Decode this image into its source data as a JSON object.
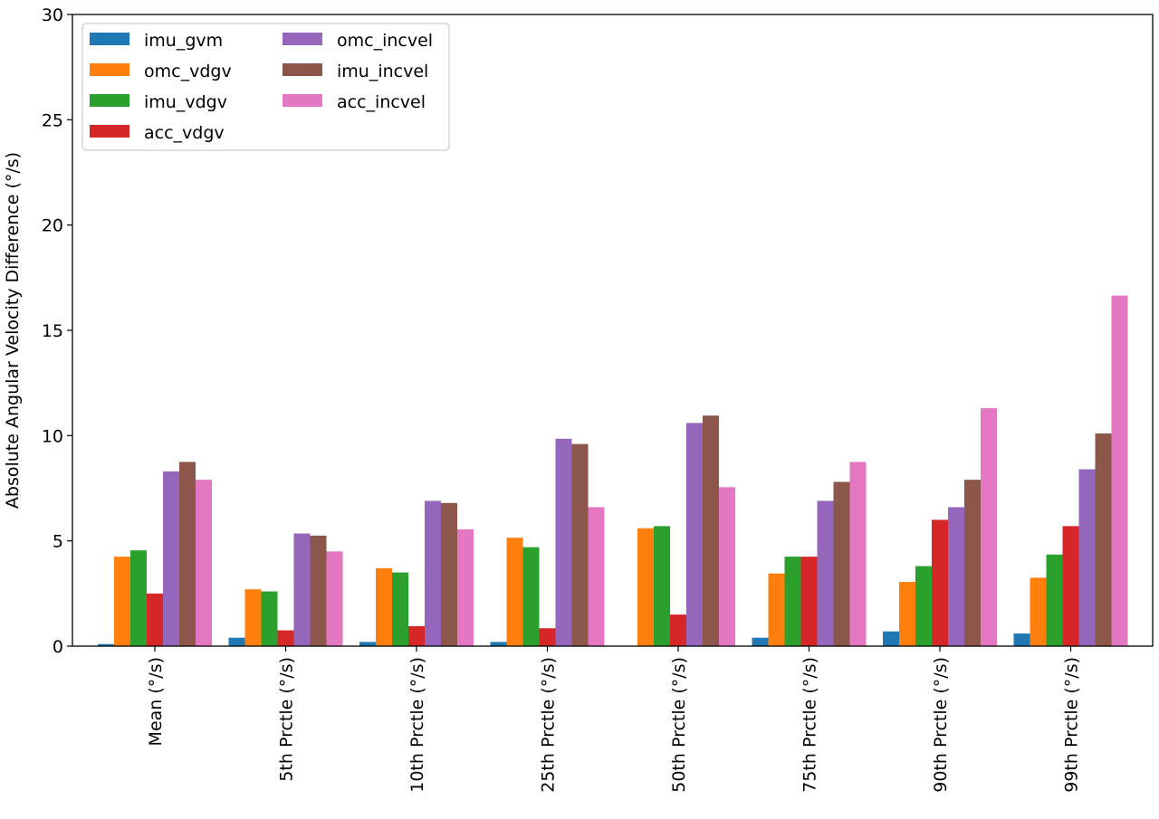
{
  "chart_data": {
    "type": "bar",
    "title": "",
    "xlabel": "",
    "ylabel": "Absolute Angular Velocity Difference (°/s)",
    "ylim": [
      0,
      30
    ],
    "yticks": [
      0,
      5,
      10,
      15,
      20,
      25,
      30
    ],
    "grid": false,
    "legend_position": "top-left",
    "legend_columns": 2,
    "categories": [
      "Mean (°/s)",
      "5th Prctle (°/s)",
      "10th Prctle (°/s)",
      "25th Prctle (°/s)",
      "50th Prctle (°/s)",
      "75th Prctle (°/s)",
      "90th Prctle (°/s)",
      "99th Prctle (°/s)"
    ],
    "series": [
      {
        "name": "imu_gvm",
        "color": "#1f77b4",
        "values": [
          0.1,
          0.4,
          0.2,
          0.2,
          0.0,
          0.4,
          0.7,
          0.6
        ]
      },
      {
        "name": "omc_vdgv",
        "color": "#ff7f0e",
        "values": [
          4.25,
          2.7,
          3.7,
          5.15,
          5.6,
          3.45,
          3.05,
          3.25
        ]
      },
      {
        "name": "imu_vdgv",
        "color": "#2ca02c",
        "values": [
          4.55,
          2.6,
          3.5,
          4.7,
          5.7,
          4.25,
          3.8,
          4.35
        ]
      },
      {
        "name": "acc_vdgv",
        "color": "#d62728",
        "values": [
          2.5,
          0.75,
          0.95,
          0.85,
          1.5,
          4.25,
          6.0,
          5.7
        ]
      },
      {
        "name": "omc_incvel",
        "color": "#9467bd",
        "values": [
          8.3,
          5.35,
          6.9,
          9.85,
          10.6,
          6.9,
          6.6,
          8.4
        ]
      },
      {
        "name": "imu_incvel",
        "color": "#8c564b",
        "values": [
          8.75,
          5.25,
          6.8,
          9.6,
          10.95,
          7.8,
          7.9,
          10.1
        ]
      },
      {
        "name": "acc_incvel",
        "color": "#e377c2",
        "values": [
          7.9,
          4.5,
          5.55,
          6.6,
          7.55,
          8.75,
          11.3,
          16.65
        ]
      }
    ]
  }
}
